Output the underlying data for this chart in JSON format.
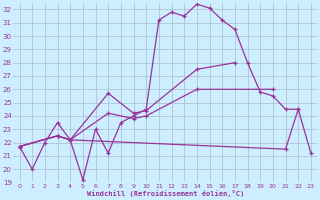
{
  "background_color": "#cceeff",
  "grid_color": "#aabbcc",
  "line_color": "#993399",
  "marker": "+",
  "xlim": [
    -0.5,
    23.5
  ],
  "ylim": [
    19,
    32.5
  ],
  "xticks": [
    0,
    1,
    2,
    3,
    4,
    5,
    6,
    7,
    8,
    9,
    10,
    11,
    12,
    13,
    14,
    15,
    16,
    17,
    18,
    19,
    20,
    21,
    22,
    23
  ],
  "yticks": [
    19,
    20,
    21,
    22,
    23,
    24,
    25,
    26,
    27,
    28,
    29,
    30,
    31,
    32
  ],
  "xlabel": "Windchill (Refroidissement éolien,°C)",
  "series1_x": [
    0,
    1,
    2,
    3,
    4,
    5,
    6,
    7,
    8,
    9,
    10,
    11,
    12,
    13,
    14,
    15,
    16,
    17,
    18,
    19,
    20,
    21,
    22
  ],
  "series1_y": [
    21.7,
    20.0,
    22.0,
    23.5,
    22.2,
    19.2,
    23.0,
    21.2,
    23.5,
    24.0,
    24.5,
    31.2,
    31.8,
    31.5,
    32.4,
    32.1,
    31.2,
    30.5,
    28.0,
    25.8,
    25.5,
    24.5,
    24.5
  ],
  "series2_x": [
    0,
    3,
    4,
    7,
    9,
    10,
    14,
    17
  ],
  "series2_y": [
    21.7,
    22.5,
    22.2,
    25.7,
    24.2,
    24.4,
    27.5,
    28.0
  ],
  "series3_x": [
    0,
    3,
    4,
    7,
    9,
    10,
    14,
    20
  ],
  "series3_y": [
    21.7,
    22.5,
    22.2,
    24.2,
    23.8,
    24.0,
    26.0,
    26.0
  ],
  "series4_x": [
    0,
    3,
    4,
    21,
    22,
    23
  ],
  "series4_y": [
    21.7,
    22.5,
    22.2,
    21.5,
    24.5,
    21.2
  ]
}
